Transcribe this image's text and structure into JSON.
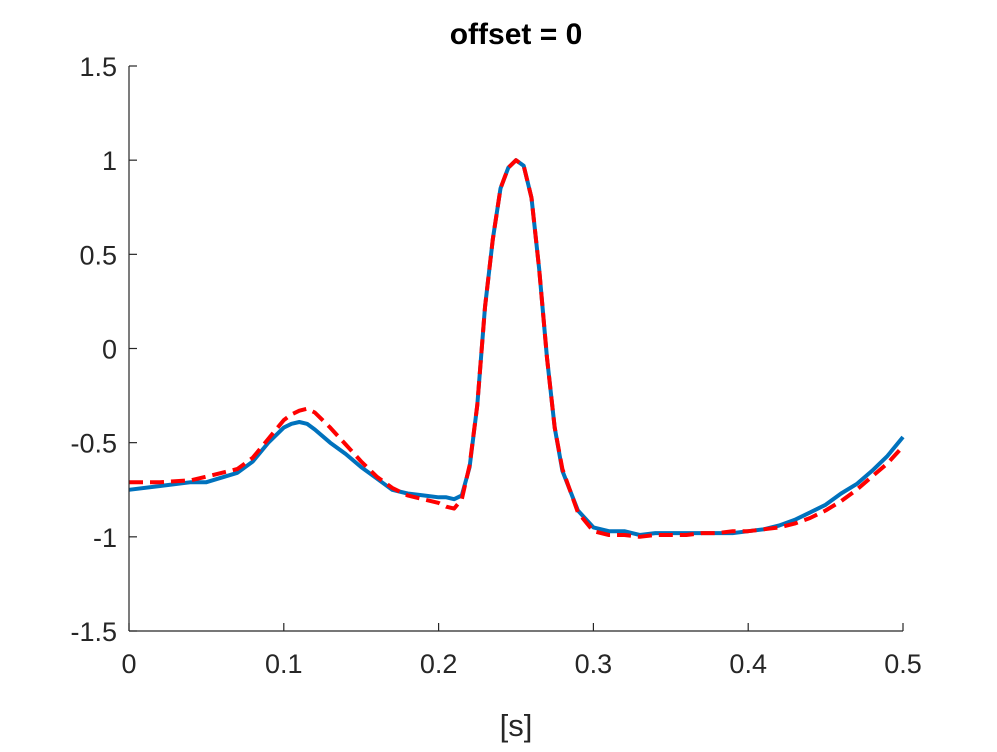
{
  "chart_data": {
    "type": "line",
    "title": "offset = 0",
    "xlabel": "[s]",
    "ylabel": "",
    "xlim": [
      0,
      0.5
    ],
    "ylim": [
      -1.5,
      1.5
    ],
    "xticks": [
      0,
      0.1,
      0.2,
      0.3,
      0.4,
      0.5
    ],
    "xtick_labels": [
      "0",
      "0.1",
      "0.2",
      "0.3",
      "0.4",
      "0.5"
    ],
    "yticks": [
      -1.5,
      -1,
      -0.5,
      0,
      0.5,
      1,
      1.5
    ],
    "ytick_labels": [
      "-1.5",
      "-1",
      "-0.5",
      "0",
      "0.5",
      "1",
      "1.5"
    ],
    "grid": false,
    "legend": false,
    "series": [
      {
        "color": "#0072BD",
        "style": "solid",
        "x": [
          0,
          0.02,
          0.04,
          0.05,
          0.07,
          0.08,
          0.09,
          0.1,
          0.105,
          0.11,
          0.115,
          0.12,
          0.13,
          0.14,
          0.15,
          0.16,
          0.17,
          0.18,
          0.19,
          0.2,
          0.205,
          0.21,
          0.215,
          0.22,
          0.225,
          0.23,
          0.235,
          0.24,
          0.245,
          0.25,
          0.255,
          0.26,
          0.265,
          0.27,
          0.275,
          0.28,
          0.29,
          0.3,
          0.31,
          0.32,
          0.33,
          0.34,
          0.35,
          0.36,
          0.37,
          0.38,
          0.39,
          0.4,
          0.41,
          0.42,
          0.43,
          0.44,
          0.45,
          0.46,
          0.47,
          0.48,
          0.49,
          0.5
        ],
        "y": [
          -0.75,
          -0.73,
          -0.71,
          -0.71,
          -0.66,
          -0.6,
          -0.5,
          -0.42,
          -0.4,
          -0.39,
          -0.4,
          -0.43,
          -0.5,
          -0.56,
          -0.63,
          -0.69,
          -0.75,
          -0.77,
          -0.78,
          -0.79,
          -0.79,
          -0.8,
          -0.78,
          -0.63,
          -0.3,
          0.22,
          0.58,
          0.85,
          0.96,
          1.0,
          0.97,
          0.8,
          0.42,
          -0.05,
          -0.42,
          -0.65,
          -0.86,
          -0.95,
          -0.97,
          -0.97,
          -0.99,
          -0.98,
          -0.98,
          -0.98,
          -0.98,
          -0.98,
          -0.98,
          -0.97,
          -0.96,
          -0.94,
          -0.91,
          -0.87,
          -0.83,
          -0.77,
          -0.72,
          -0.65,
          -0.57,
          -0.47
        ]
      },
      {
        "color": "#FF0000",
        "style": "dashed",
        "x": [
          0,
          0.02,
          0.04,
          0.05,
          0.07,
          0.08,
          0.09,
          0.1,
          0.105,
          0.11,
          0.115,
          0.12,
          0.13,
          0.14,
          0.15,
          0.16,
          0.17,
          0.18,
          0.19,
          0.2,
          0.205,
          0.21,
          0.215,
          0.22,
          0.225,
          0.23,
          0.235,
          0.24,
          0.245,
          0.25,
          0.255,
          0.26,
          0.265,
          0.27,
          0.275,
          0.28,
          0.29,
          0.3,
          0.31,
          0.32,
          0.33,
          0.34,
          0.35,
          0.36,
          0.37,
          0.38,
          0.39,
          0.4,
          0.41,
          0.42,
          0.43,
          0.44,
          0.45,
          0.46,
          0.47,
          0.48,
          0.49,
          0.5
        ],
        "y": [
          -0.71,
          -0.71,
          -0.7,
          -0.68,
          -0.64,
          -0.58,
          -0.48,
          -0.38,
          -0.35,
          -0.33,
          -0.32,
          -0.34,
          -0.42,
          -0.51,
          -0.6,
          -0.68,
          -0.74,
          -0.78,
          -0.8,
          -0.82,
          -0.84,
          -0.85,
          -0.8,
          -0.62,
          -0.3,
          0.22,
          0.58,
          0.85,
          0.96,
          1.0,
          0.97,
          0.8,
          0.42,
          -0.05,
          -0.42,
          -0.64,
          -0.87,
          -0.97,
          -0.99,
          -0.99,
          -1.0,
          -0.99,
          -0.99,
          -0.99,
          -0.98,
          -0.98,
          -0.97,
          -0.97,
          -0.96,
          -0.95,
          -0.93,
          -0.9,
          -0.86,
          -0.81,
          -0.75,
          -0.68,
          -0.61,
          -0.52
        ]
      }
    ]
  }
}
